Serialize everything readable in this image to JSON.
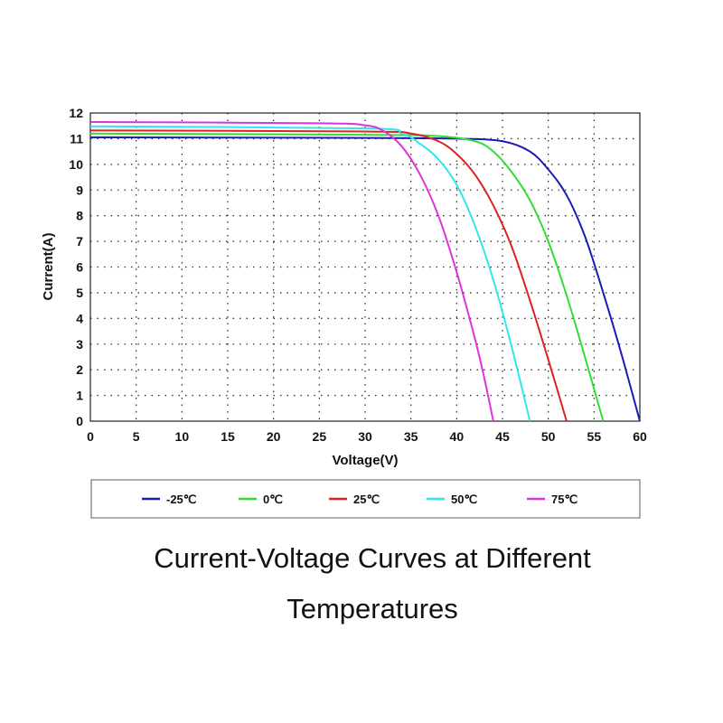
{
  "chart_data": {
    "type": "line",
    "title": "Current-Voltage Curves at Different Temperatures",
    "title_line1": "Current-Voltage Curves at Different",
    "title_line2": "Temperatures",
    "xlabel": "Voltage(V)",
    "ylabel": "Current(A)",
    "xlim": [
      0,
      60
    ],
    "ylim": [
      0,
      12
    ],
    "xticks": [
      0,
      5,
      10,
      15,
      20,
      25,
      30,
      35,
      40,
      45,
      50,
      55,
      60
    ],
    "yticks": [
      0,
      1,
      2,
      3,
      4,
      5,
      6,
      7,
      8,
      9,
      10,
      11,
      12
    ],
    "grid": true,
    "legend_position": "bottom",
    "series": [
      {
        "name": "-25℃",
        "color": "#1c1cb4",
        "points": [
          [
            0,
            11.05
          ],
          [
            30,
            11.03
          ],
          [
            40,
            11.0
          ],
          [
            45,
            10.9
          ],
          [
            48,
            10.5
          ],
          [
            50,
            9.8
          ],
          [
            52,
            8.8
          ],
          [
            54,
            7.2
          ],
          [
            56,
            5.0
          ],
          [
            58,
            2.6
          ],
          [
            60,
            0
          ]
        ]
      },
      {
        "name": "0℃",
        "color": "#33dd33",
        "points": [
          [
            0,
            11.2
          ],
          [
            30,
            11.15
          ],
          [
            38,
            11.1
          ],
          [
            42,
            10.9
          ],
          [
            44,
            10.5
          ],
          [
            46,
            9.7
          ],
          [
            48,
            8.6
          ],
          [
            50,
            7.0
          ],
          [
            52,
            4.9
          ],
          [
            54,
            2.5
          ],
          [
            56,
            0
          ]
        ]
      },
      {
        "name": "25℃",
        "color": "#dd2222",
        "points": [
          [
            0,
            11.32
          ],
          [
            30,
            11.28
          ],
          [
            35,
            11.2
          ],
          [
            38,
            10.9
          ],
          [
            40,
            10.4
          ],
          [
            42,
            9.6
          ],
          [
            44,
            8.4
          ],
          [
            46,
            6.8
          ],
          [
            48,
            4.7
          ],
          [
            50,
            2.4
          ],
          [
            52,
            0
          ]
        ]
      },
      {
        "name": "50℃",
        "color": "#33e6e6",
        "points": [
          [
            0,
            11.48
          ],
          [
            30,
            11.4
          ],
          [
            34,
            11.2
          ],
          [
            36,
            10.8
          ],
          [
            38,
            10.2
          ],
          [
            40,
            9.2
          ],
          [
            42,
            7.6
          ],
          [
            44,
            5.5
          ],
          [
            46,
            2.9
          ],
          [
            48,
            0
          ]
        ]
      },
      {
        "name": "75℃",
        "color": "#dd33dd",
        "points": [
          [
            0,
            11.65
          ],
          [
            25,
            11.6
          ],
          [
            30,
            11.52
          ],
          [
            32,
            11.3
          ],
          [
            34,
            10.7
          ],
          [
            36,
            9.6
          ],
          [
            38,
            8.0
          ],
          [
            40,
            5.8
          ],
          [
            42,
            3.2
          ],
          [
            43,
            1.7
          ],
          [
            44,
            0
          ]
        ]
      }
    ]
  }
}
